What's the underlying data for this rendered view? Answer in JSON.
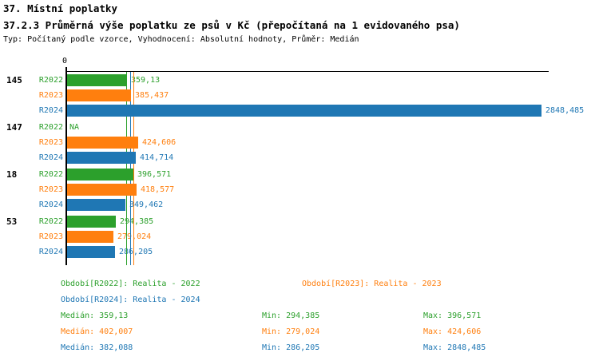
{
  "header": {
    "title": "37. Místní poplatky",
    "subtitle": "37.2.3 Průměrná výše poplatku ze psů v Kč (přepočítaná na 1 evidovaného psa)",
    "meta": "Typ: Počítaný podle vzorce, Vyhodnocení: Absolutní hodnoty, Průměr: Medián"
  },
  "colors": {
    "r2022": "#2ca02c",
    "r2023": "#ff7f0e",
    "r2024": "#1f77b4",
    "axis": "#000000"
  },
  "chart_data": {
    "type": "bar",
    "orientation": "horizontal",
    "axis_zero_label": "0",
    "xlim": [
      0,
      2900
    ],
    "grid": false,
    "series_names": [
      "R2022",
      "R2023",
      "R2024"
    ],
    "series_keys": [
      "r2022",
      "r2023",
      "r2024"
    ],
    "groups": [
      {
        "label": "145",
        "values": [
          359.13,
          385.437,
          2848.485
        ],
        "value_labels": [
          "359,13",
          "385,437",
          "2848,485"
        ]
      },
      {
        "label": "147",
        "values": [
          null,
          424.606,
          414.714
        ],
        "value_labels": [
          "NA",
          "424,606",
          "414,714"
        ]
      },
      {
        "label": "18",
        "values": [
          396.571,
          418.577,
          349.462
        ],
        "value_labels": [
          "396,571",
          "418,577",
          "349,462"
        ]
      },
      {
        "label": "53",
        "values": [
          294.385,
          279.024,
          286.205
        ],
        "value_labels": [
          "294,385",
          "279,024",
          "286,205"
        ]
      }
    ],
    "median_lines": [
      {
        "series_key": "r2022",
        "value": 359.13
      },
      {
        "series_key": "r2023",
        "value": 402.007
      },
      {
        "series_key": "r2024",
        "value": 382.088
      }
    ]
  },
  "legend": {
    "items": [
      {
        "label": "Období[R2022]: Realita - 2022",
        "series_key": "r2022"
      },
      {
        "label": "Období[R2023]: Realita - 2023",
        "series_key": "r2023"
      },
      {
        "label": "Období[R2024]: Realita - 2024",
        "series_key": "r2024"
      }
    ],
    "stats": [
      {
        "series_key": "r2022",
        "median": "Medián: 359,13",
        "min": "Min: 294,385",
        "max": "Max: 396,571"
      },
      {
        "series_key": "r2023",
        "median": "Medián: 402,007",
        "min": "Min: 279,024",
        "max": "Max: 424,606"
      },
      {
        "series_key": "r2024",
        "median": "Medián: 382,088",
        "min": "Min: 286,205",
        "max": "Max: 2848,485"
      }
    ]
  }
}
